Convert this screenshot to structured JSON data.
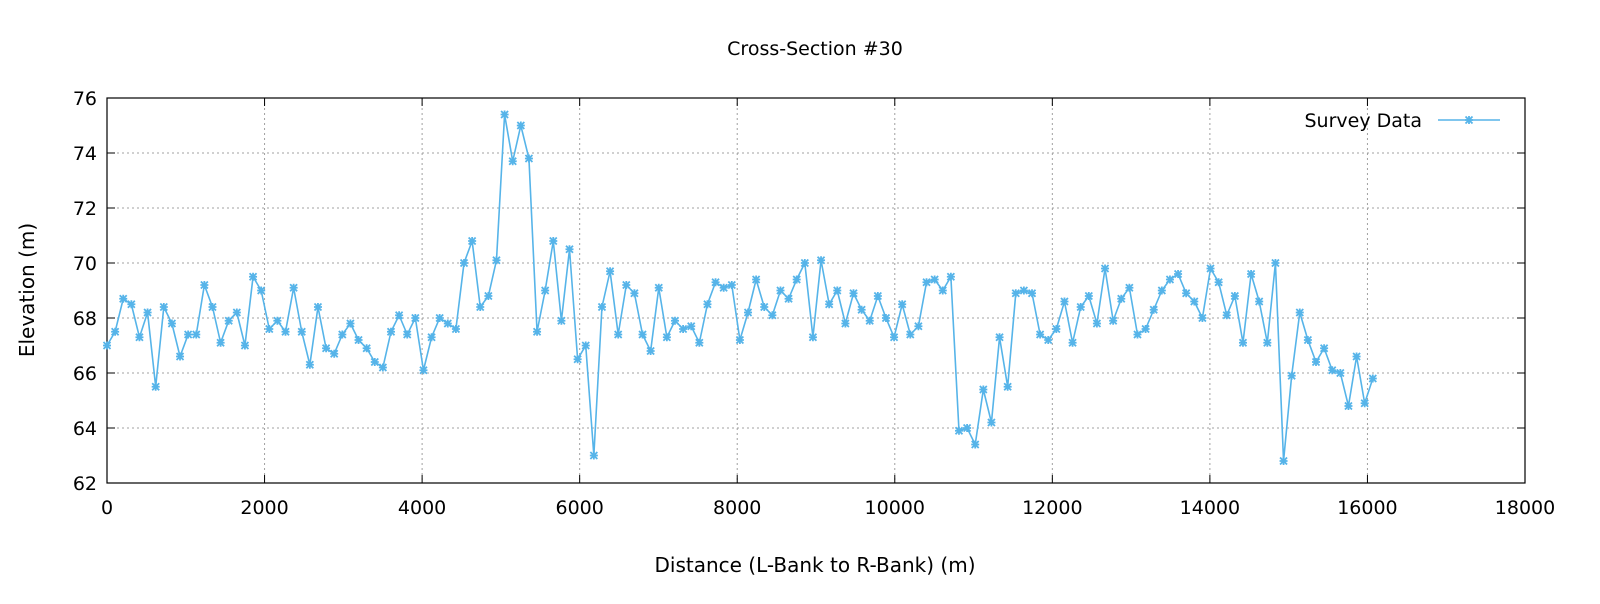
{
  "chart_data": {
    "type": "line",
    "title": "Cross-Section #30",
    "xlabel": "Distance (L-Bank to R-Bank) (m)",
    "ylabel": "Elevation (m)",
    "xlim": [
      0,
      18000
    ],
    "ylim": [
      62,
      76
    ],
    "xticks": [
      0,
      2000,
      4000,
      6000,
      8000,
      10000,
      12000,
      14000,
      16000,
      18000
    ],
    "yticks": [
      62,
      64,
      66,
      68,
      70,
      72,
      74,
      76
    ],
    "grid": true,
    "legend_position": "top-right",
    "x_step": 103,
    "series": [
      {
        "name": "Survey Data",
        "color": "#56b4e9",
        "values": [
          67.0,
          67.5,
          68.7,
          68.5,
          67.3,
          68.2,
          65.5,
          68.4,
          67.8,
          66.6,
          67.4,
          67.4,
          69.2,
          68.4,
          67.1,
          67.9,
          68.2,
          67.0,
          69.5,
          69.0,
          67.6,
          67.9,
          67.5,
          69.1,
          67.5,
          66.3,
          68.4,
          66.9,
          66.7,
          67.4,
          67.8,
          67.2,
          66.9,
          66.4,
          66.2,
          67.5,
          68.1,
          67.4,
          68.0,
          66.1,
          67.3,
          68.0,
          67.8,
          67.6,
          70.0,
          70.8,
          68.4,
          68.8,
          70.1,
          75.4,
          73.7,
          75.0,
          73.8,
          67.5,
          69.0,
          70.8,
          67.9,
          70.5,
          66.5,
          67.0,
          63.0,
          68.4,
          69.7,
          67.4,
          69.2,
          68.9,
          67.4,
          66.8,
          69.1,
          67.3,
          67.9,
          67.6,
          67.7,
          67.1,
          68.5,
          69.3,
          69.1,
          69.2,
          67.2,
          68.2,
          69.4,
          68.4,
          68.1,
          69.0,
          68.7,
          69.4,
          70.0,
          67.3,
          70.1,
          68.5,
          69.0,
          67.8,
          68.9,
          68.3,
          67.9,
          68.8,
          68.0,
          67.3,
          68.5,
          67.4,
          67.7,
          69.3,
          69.4,
          69.0,
          69.5,
          63.9,
          64.0,
          63.4,
          65.4,
          64.2,
          67.3,
          65.5,
          68.9,
          69.0,
          68.9,
          67.4,
          67.2,
          67.6,
          68.6,
          67.1,
          68.4,
          68.8,
          67.8,
          69.8,
          67.9,
          68.7,
          69.1,
          67.4,
          67.6,
          68.3,
          69.0,
          69.4,
          69.6,
          68.9,
          68.6,
          68.0,
          69.8,
          69.3,
          68.1,
          68.8,
          67.1,
          69.6,
          68.6,
          67.1,
          70.0,
          62.8,
          65.9,
          68.2,
          67.2,
          66.4,
          66.9,
          66.1,
          66.0,
          64.8,
          66.6,
          64.9,
          65.8
        ]
      }
    ]
  }
}
